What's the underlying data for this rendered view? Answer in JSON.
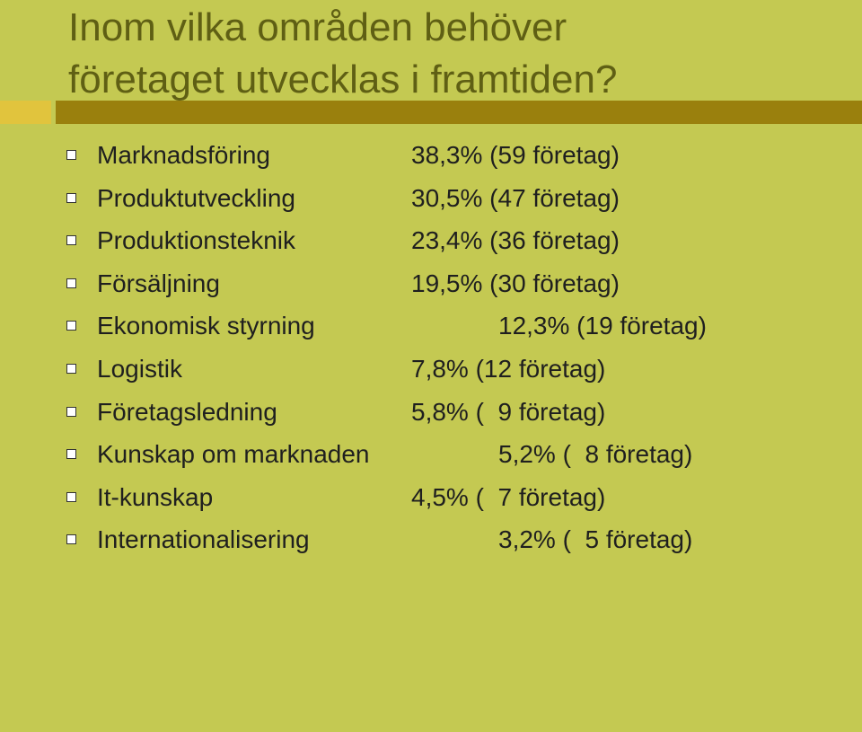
{
  "title_line_1": "Inom vilka områden behöver",
  "title_line_2": "företaget utvecklas i framtiden?",
  "items": [
    {
      "label": "Marknadsföring",
      "value": "38,3% (59 företag)"
    },
    {
      "label": "Produktutveckling",
      "value": "30,5% (47 företag)"
    },
    {
      "label": "Produktionsteknik",
      "value": "23,4% (36 företag)"
    },
    {
      "label": "Försäljning",
      "value": "19,5% (30 företag)"
    },
    {
      "label": "Ekonomisk styrning",
      "value": "12,3% (19 företag)"
    },
    {
      "label": "Logistik",
      "value": "7,8% (12 företag)"
    },
    {
      "label": "Företagsledning",
      "value": "5,8% (  9 företag)"
    },
    {
      "label": "Kunskap om marknaden",
      "value": "5,2% (  8 företag)"
    },
    {
      "label": "It-kunskap",
      "value": "4,5% (  7 företag)"
    },
    {
      "label": "Internationalisering",
      "value": "3,2% (  5 företag)"
    }
  ]
}
